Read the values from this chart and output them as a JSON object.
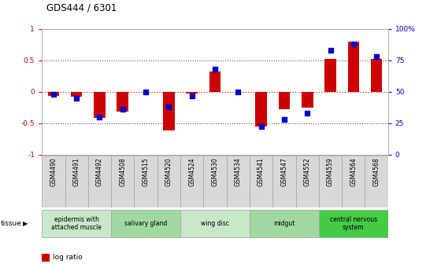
{
  "title": "GDS444 / 6301",
  "samples": [
    "GSM4490",
    "GSM4491",
    "GSM4492",
    "GSM4508",
    "GSM4515",
    "GSM4520",
    "GSM4524",
    "GSM4530",
    "GSM4534",
    "GSM4541",
    "GSM4547",
    "GSM4552",
    "GSM4559",
    "GSM4564",
    "GSM4568"
  ],
  "log_ratio": [
    -0.07,
    -0.08,
    -0.42,
    -0.32,
    0.0,
    -0.62,
    -0.03,
    0.32,
    0.0,
    -0.55,
    -0.28,
    -0.25,
    0.52,
    0.8,
    0.52
  ],
  "percentile": [
    48,
    45,
    30,
    36,
    50,
    38,
    47,
    68,
    50,
    22,
    28,
    33,
    83,
    88,
    78
  ],
  "tissue_groups": [
    {
      "label": "epidermis with\nattached muscle",
      "start": 0,
      "end": 2,
      "color": "#c8e8c8"
    },
    {
      "label": "salivary gland",
      "start": 3,
      "end": 5,
      "color": "#a0d8a0"
    },
    {
      "label": "wing disc",
      "start": 6,
      "end": 8,
      "color": "#c8e8c8"
    },
    {
      "label": "midgut",
      "start": 9,
      "end": 11,
      "color": "#a0d8a0"
    },
    {
      "label": "central nervous\nsystem",
      "start": 12,
      "end": 14,
      "color": "#44cc44"
    }
  ],
  "bar_color": "#cc0000",
  "dot_color": "#0000cc",
  "ylim": [
    -1,
    1
  ],
  "y2lim": [
    0,
    100
  ],
  "yticks": [
    -1,
    -0.5,
    0,
    0.5,
    1
  ],
  "ytick_labels": [
    "-1",
    "-0.5",
    "0",
    "0.5",
    "1"
  ],
  "y2ticks": [
    0,
    25,
    50,
    75,
    100
  ],
  "y2tick_labels": [
    "0",
    "25",
    "50",
    "75",
    "100%"
  ],
  "hlines": [
    0.5,
    0.0,
    -0.5
  ],
  "background_color": "#ffffff"
}
